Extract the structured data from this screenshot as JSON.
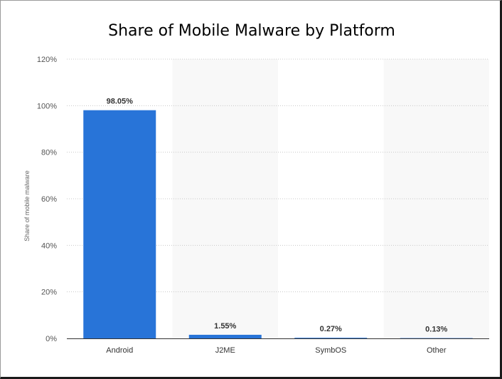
{
  "chart_data": {
    "type": "bar",
    "title": "Share of Mobile Malware by Platform",
    "xlabel": "",
    "ylabel": "Share of mobile malware",
    "categories": [
      "Android",
      "J2ME",
      "SymbOS",
      "Other"
    ],
    "values": [
      98.05,
      1.55,
      0.27,
      0.13
    ],
    "data_labels": [
      "98.05%",
      "1.55%",
      "0.27%",
      "0.13%"
    ],
    "ylim": [
      0,
      120
    ],
    "yticks": [
      0,
      20,
      40,
      60,
      80,
      100,
      120
    ],
    "ytick_labels": [
      "0%",
      "20%",
      "40%",
      "60%",
      "80%",
      "100%",
      "120%"
    ],
    "grid": true,
    "grid_style": "dotted horizontal",
    "legend": "none",
    "bar_color": "#2874d8",
    "band_color": "#f8f8f8"
  }
}
